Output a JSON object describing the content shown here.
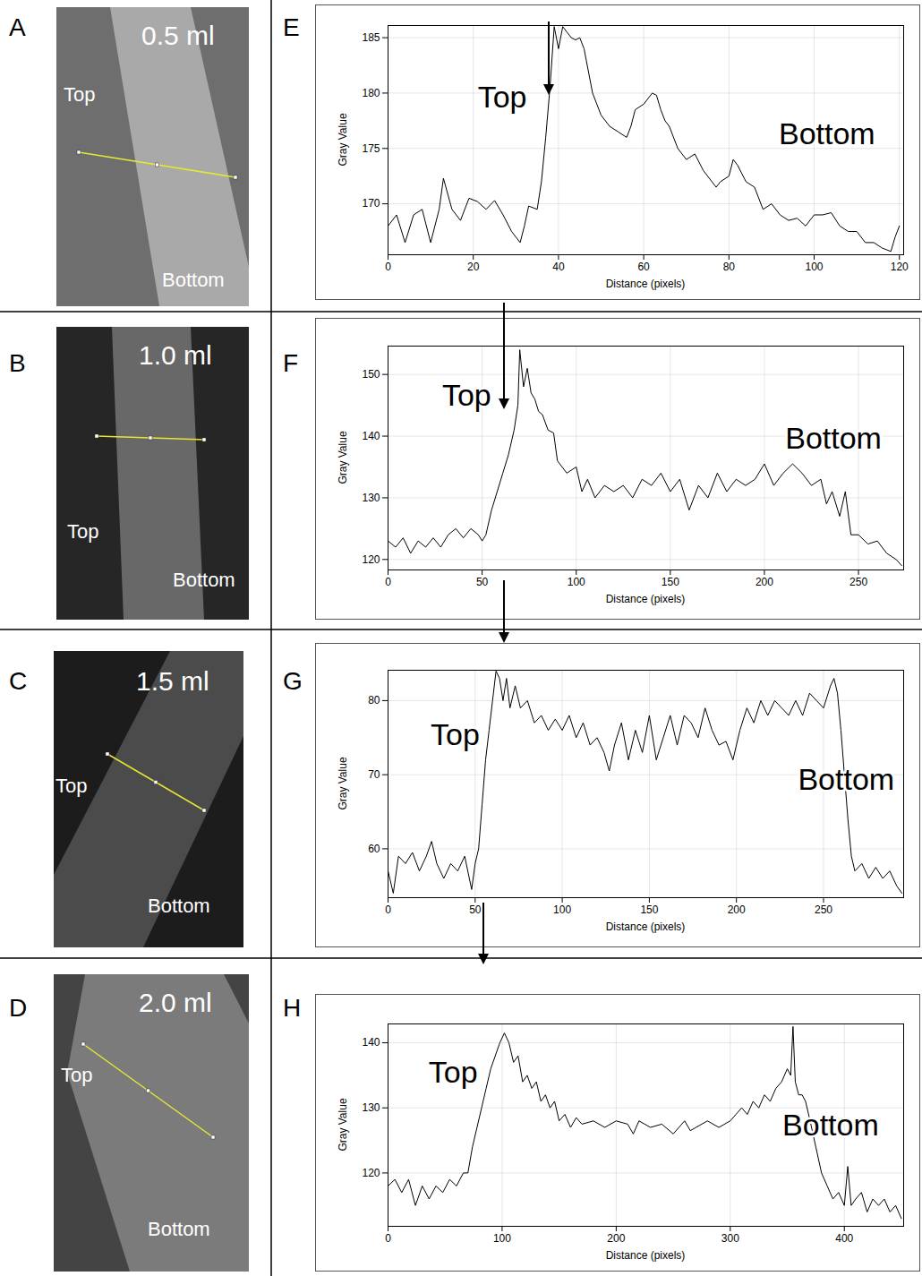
{
  "images": [
    {
      "letter": "A",
      "volume": "0.5 ml",
      "top_label": "Top",
      "bottom_label": "Bottom"
    },
    {
      "letter": "B",
      "volume": "1.0 ml",
      "top_label": "Top",
      "bottom_label": "Bottom"
    },
    {
      "letter": "C",
      "volume": "1.5 ml",
      "top_label": "Top",
      "bottom_label": "Bottom"
    },
    {
      "letter": "D",
      "volume": "2.0 ml",
      "top_label": "Top",
      "bottom_label": "Bottom"
    }
  ],
  "chart_data": [
    {
      "letter": "E",
      "type": "line",
      "x_label": "Distance (pixels)",
      "y_label": "Gray Value",
      "color": "#000000",
      "grid": true,
      "xlim": [
        0,
        121
      ],
      "xticks": [
        0,
        20,
        40,
        60,
        80,
        100,
        120
      ],
      "ylim": [
        165.4,
        186.1
      ],
      "yticks": [
        170,
        175,
        180,
        185
      ],
      "x": [
        0,
        2,
        4,
        6,
        8,
        10,
        12,
        13,
        15,
        17,
        19,
        21,
        23,
        25,
        27,
        29,
        31,
        32,
        33,
        35,
        36,
        37,
        38,
        39,
        40,
        41,
        42,
        43,
        44,
        45,
        46,
        48,
        50,
        52,
        54,
        56,
        57,
        58,
        60,
        62,
        63,
        64,
        65,
        66,
        68,
        70,
        72,
        74,
        76,
        77,
        78,
        80,
        81,
        82,
        84,
        86,
        88,
        90,
        92,
        94,
        96,
        98,
        100,
        102,
        104,
        106,
        108,
        110,
        112,
        114,
        116,
        118,
        119,
        120
      ],
      "values": [
        168,
        169,
        166.5,
        169,
        169.5,
        166.5,
        169.5,
        172.3,
        169.5,
        168.5,
        170.5,
        170.2,
        169.5,
        170.3,
        169,
        167.5,
        166.5,
        168,
        169.8,
        169.5,
        172,
        176,
        180.5,
        186,
        184,
        186,
        185.5,
        185,
        184.8,
        185,
        184,
        180,
        178,
        177,
        176.5,
        176,
        177,
        178.5,
        179,
        180,
        179.8,
        178.5,
        177.5,
        177,
        175,
        174,
        174.5,
        173,
        172,
        171.5,
        172,
        172.5,
        174,
        173.5,
        172,
        171.5,
        169.5,
        170,
        169,
        168.5,
        168.7,
        168,
        169,
        169,
        169.2,
        168,
        167.5,
        167.5,
        166.5,
        166.5,
        166,
        165.7,
        167,
        168
      ],
      "annotations": [
        {
          "text": "Top",
          "x": 26.8,
          "y": 179.6
        },
        {
          "text": "Bottom",
          "x": 103,
          "y": 176.3
        }
      ]
    },
    {
      "letter": "F",
      "type": "line",
      "x_label": "Distance (pixels)",
      "y_label": "Gray Value",
      "color": "#000000",
      "grid": true,
      "xlim": [
        0,
        274
      ],
      "xticks": [
        0,
        50,
        100,
        150,
        200,
        250
      ],
      "ylim": [
        118.3,
        154.6
      ],
      "yticks": [
        120,
        130,
        140,
        150
      ],
      "x": [
        0,
        4,
        8,
        12,
        16,
        20,
        24,
        28,
        32,
        36,
        40,
        44,
        48,
        50,
        52,
        55,
        58,
        61,
        64,
        67,
        69,
        70,
        72,
        74,
        76,
        78,
        80,
        82,
        85,
        88,
        90,
        95,
        100,
        103,
        106,
        110,
        115,
        120,
        125,
        130,
        135,
        140,
        145,
        150,
        155,
        160,
        165,
        170,
        175,
        180,
        185,
        190,
        195,
        200,
        205,
        210,
        215,
        220,
        225,
        230,
        233,
        236,
        240,
        243,
        246,
        250,
        255,
        260,
        265,
        270,
        273
      ],
      "values": [
        123,
        122,
        123.5,
        121,
        123,
        122,
        123.5,
        122,
        124,
        125,
        123.5,
        125,
        124,
        123,
        124,
        128,
        131,
        134,
        137,
        141,
        145,
        154,
        148,
        151,
        147,
        146,
        144,
        143.5,
        141,
        140.5,
        136,
        134,
        135,
        131,
        133,
        130,
        132,
        131,
        132,
        130,
        133,
        132,
        134,
        131,
        133,
        128,
        132,
        130,
        134,
        131,
        133,
        132,
        133,
        135.5,
        132,
        134,
        135.5,
        134,
        132,
        133,
        129,
        131,
        127,
        131,
        124,
        124,
        122.5,
        123,
        121,
        120,
        119
      ],
      "annotations": [
        {
          "text": "Top",
          "x": 41.8,
          "y": 146.5
        },
        {
          "text": "Bottom",
          "x": 236.7,
          "y": 139.5
        }
      ]
    },
    {
      "letter": "G",
      "type": "line",
      "x_label": "Distance (pixels)",
      "y_label": "Gray Value",
      "color": "#000000",
      "grid": true,
      "xlim": [
        0,
        296
      ],
      "xticks": [
        0,
        50,
        100,
        150,
        200,
        250
      ],
      "ylim": [
        53.4,
        84.1
      ],
      "yticks": [
        60,
        70,
        80
      ],
      "x": [
        0,
        3,
        6,
        10,
        14,
        18,
        22,
        25,
        28,
        32,
        36,
        40,
        44,
        48,
        50,
        52,
        54,
        56,
        58,
        60,
        62,
        64,
        66,
        68,
        70,
        73,
        76,
        80,
        84,
        88,
        92,
        96,
        100,
        104,
        108,
        112,
        116,
        120,
        124,
        127,
        130,
        134,
        138,
        142,
        146,
        150,
        154,
        158,
        162,
        166,
        170,
        174,
        178,
        182,
        186,
        190,
        194,
        198,
        202,
        206,
        210,
        214,
        218,
        222,
        226,
        230,
        234,
        238,
        242,
        246,
        250,
        254,
        256,
        258,
        260,
        262,
        264,
        266,
        268,
        272,
        276,
        280,
        284,
        288,
        292,
        295
      ],
      "values": [
        57,
        54,
        59,
        58,
        59.5,
        57,
        59,
        61,
        58,
        56,
        58,
        57,
        59,
        54.5,
        58,
        60,
        66,
        72,
        76,
        80,
        84,
        83,
        80,
        83,
        79,
        82,
        79,
        80,
        77,
        78,
        76,
        77.5,
        76,
        78,
        75,
        77,
        74,
        75,
        73,
        70.5,
        74,
        77,
        72,
        76,
        73,
        78,
        72,
        75,
        78,
        74,
        78,
        77,
        75,
        79,
        76,
        74,
        74.5,
        72,
        76,
        79,
        77,
        80,
        78,
        80,
        79,
        78,
        80,
        78,
        81,
        80,
        79,
        82,
        83,
        81,
        76,
        70,
        64,
        59,
        57,
        58,
        56,
        57.5,
        56,
        57,
        55,
        54
      ],
      "annotations": [
        {
          "text": "Top",
          "x": 38.5,
          "y": 75.3
        },
        {
          "text": "Bottom",
          "x": 263,
          "y": 69.3
        }
      ]
    },
    {
      "letter": "H",
      "type": "line",
      "x_label": "Distance (pixels)",
      "y_label": "Gray Value",
      "color": "#000000",
      "grid": true,
      "xlim": [
        0,
        452
      ],
      "xticks": [
        0,
        100,
        200,
        300,
        400
      ],
      "ylim": [
        111.8,
        142.9
      ],
      "yticks": [
        120,
        130,
        140
      ],
      "x": [
        0,
        6,
        12,
        18,
        24,
        30,
        36,
        42,
        48,
        54,
        60,
        66,
        70,
        74,
        78,
        82,
        86,
        90,
        94,
        98,
        102,
        106,
        110,
        114,
        118,
        122,
        126,
        130,
        134,
        138,
        142,
        146,
        150,
        155,
        160,
        165,
        170,
        180,
        190,
        200,
        210,
        215,
        220,
        230,
        240,
        250,
        260,
        265,
        270,
        280,
        290,
        300,
        305,
        310,
        315,
        320,
        325,
        330,
        335,
        340,
        345,
        350,
        353,
        355,
        357,
        360,
        363,
        366,
        370,
        375,
        380,
        385,
        390,
        395,
        400,
        403,
        406,
        410,
        415,
        420,
        425,
        430,
        435,
        440,
        445,
        450
      ],
      "values": [
        118,
        119,
        117,
        119,
        115,
        118,
        116,
        118,
        117,
        119,
        118,
        120,
        120,
        124,
        127,
        130,
        133,
        136,
        138,
        140,
        141.5,
        140,
        137,
        138,
        134,
        135,
        133,
        134,
        131,
        132,
        130,
        131,
        128,
        129,
        127,
        128.5,
        127.5,
        128,
        127,
        128,
        127.5,
        126,
        128,
        127,
        127.5,
        126,
        128,
        126.5,
        127,
        128,
        127,
        128,
        129,
        130,
        129,
        131,
        130,
        132,
        131,
        133,
        134,
        136,
        135,
        142.5,
        134,
        132,
        132,
        131,
        128,
        124,
        120,
        118,
        116,
        117,
        115,
        121,
        115,
        116,
        117,
        114,
        116,
        115,
        116,
        114,
        115,
        113
      ],
      "annotations": [
        {
          "text": "Top",
          "x": 57,
          "y": 135.4
        },
        {
          "text": "Bottom",
          "x": 388,
          "y": 127.2
        }
      ]
    }
  ]
}
